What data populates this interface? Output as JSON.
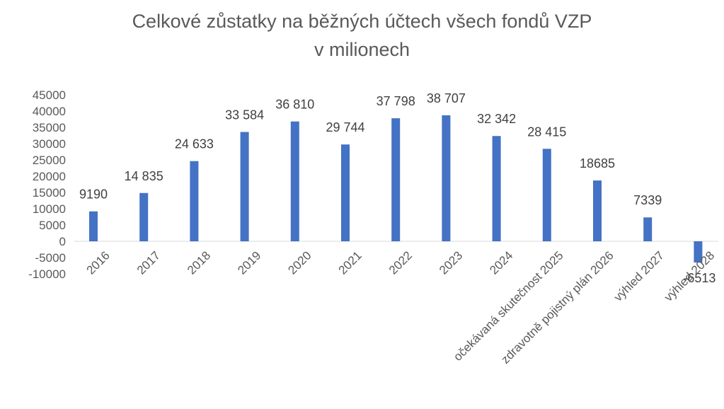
{
  "chart_data": {
    "type": "bar",
    "title_line1": "Celkové zůstatky na běžných účtech všech fondů VZP",
    "title_line2": "v milionech",
    "xlabel": "",
    "ylabel": "",
    "ylim": [
      -10000,
      45000
    ],
    "yticks": [
      45000,
      40000,
      35000,
      30000,
      25000,
      20000,
      15000,
      10000,
      5000,
      0,
      -5000,
      -10000
    ],
    "ytick_labels": [
      "45000",
      "40000",
      "35000",
      "30000",
      "25000",
      "20000",
      "15000",
      "10000",
      "5000",
      "0",
      "-5000",
      "-10000"
    ],
    "grid": false,
    "legend": "none",
    "bar_color": "#4472C4",
    "categories": [
      "2016",
      "2017",
      "2018",
      "2019",
      "2020",
      "2021",
      "2022",
      "2023",
      "2024",
      "očekávaná skutečnost 2025",
      "zdravotně pojistný plán 2026",
      "výhled 2027",
      "výhled 2028"
    ],
    "values": [
      9190,
      14835,
      24633,
      33584,
      36810,
      29744,
      37798,
      38707,
      32342,
      28415,
      18685,
      7339,
      -6513
    ],
    "data_labels": [
      "9190",
      "14 835",
      "24 633",
      "33 584",
      "36 810",
      "29 744",
      "37 798",
      "38 707",
      "32 342",
      "28 415",
      "18685",
      "7339",
      "-6513"
    ]
  }
}
